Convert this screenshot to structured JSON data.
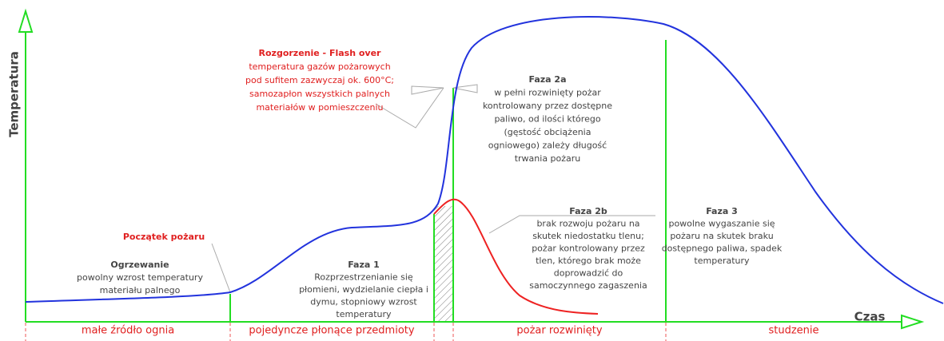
{
  "axis_y": "Temperatura",
  "axis_x": "Czas",
  "flashover": {
    "title": "Rozgorzenie - Flash over",
    "lines": [
      "temperatura gazów pożarowych",
      "pod sufitem zazwyczaj ok. 600°C;",
      "samozapłon wszystkich palnych",
      "materiałów w pomieszczeniu"
    ]
  },
  "ignition": {
    "title": "Początek pożaru"
  },
  "heating": {
    "title": "Ogrzewanie",
    "lines": [
      "powolny wzrost temperatury",
      "materiału palnego"
    ]
  },
  "phase1": {
    "title": "Faza 1",
    "lines": [
      "Rozprzestrzenianie się",
      "płomieni, wydzielanie ciepła i",
      "dymu, stopniowy wzrost",
      "temperatury"
    ]
  },
  "phase2a": {
    "title": "Faza 2a",
    "lines": [
      "w pełni rozwinięty pożar",
      "kontrolowany przez dostępne",
      "paliwo, od ilości którego",
      "(gęstość obciążenia",
      "ogniowego) zależy długość",
      "trwania pożaru"
    ]
  },
  "phase2b": {
    "title": "Faza 2b",
    "lines": [
      "brak rozwoju pożaru na",
      "skutek niedostatku tlenu;",
      "pożar kontrolowany przez",
      "tlen, którego brak może",
      "doprowadzić do",
      "samoczynnego zagaszenia"
    ]
  },
  "phase3": {
    "title": "Faza 3",
    "lines": [
      "powolne wygaszanie się",
      "pożaru na skutek braku",
      "dostępnego paliwa, spadek",
      "temperatury"
    ]
  },
  "stages": [
    "małe źródło ognia",
    "pojedyncze płonące przedmioty",
    "pożar rozwinięty",
    "studzenie"
  ]
}
